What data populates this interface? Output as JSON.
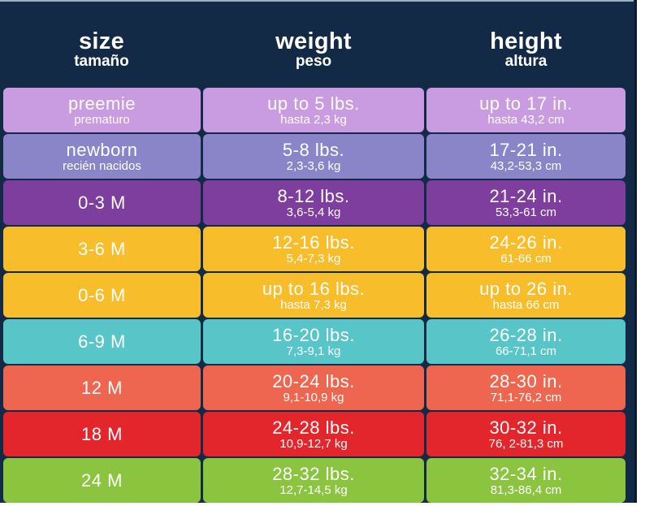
{
  "header": {
    "size": {
      "en": "size",
      "es": "tamaño"
    },
    "weight": {
      "en": "weight",
      "es": "peso"
    },
    "height": {
      "en": "height",
      "es": "altura"
    }
  },
  "colors": {
    "background": "#122a45",
    "preemie": "#c99be0",
    "newborn": "#8a85c8",
    "0-3M": "#7e3e9e",
    "3-6M": "#f7bd2a",
    "0-6M": "#f7bd2a",
    "6-9M": "#58c5c8",
    "12M": "#ee6650",
    "18M": "#e2262c",
    "24M": "#8bc43f"
  },
  "rows": [
    {
      "size": "preemie",
      "size_es": "prematuro",
      "weight": "up to 5 lbs.",
      "weight_metric": "hasta 2,3 kg",
      "height": "up to 17 in.",
      "height_metric": "hasta 43,2 cm",
      "color": "#c99be0"
    },
    {
      "size": "newborn",
      "size_es": "recién nacidos",
      "weight": "5-8 lbs.",
      "weight_metric": "2,3-3,6 kg",
      "height": "17-21 in.",
      "height_metric": "43,2-53,3 cm",
      "color": "#8a85c8"
    },
    {
      "size": "0-3 M",
      "size_es": "",
      "weight": "8-12 lbs.",
      "weight_metric": "3,6-5,4 kg",
      "height": "21-24 in.",
      "height_metric": "53,3-61 cm",
      "color": "#7e3e9e"
    },
    {
      "size": "3-6 M",
      "size_es": "",
      "weight": "12-16 lbs.",
      "weight_metric": "5,4-7,3 kg",
      "height": "24-26 in.",
      "height_metric": "61-66 cm",
      "color": "#f7bd2a"
    },
    {
      "size": "0-6 M",
      "size_es": "",
      "weight": "up to 16 lbs.",
      "weight_metric": "hasta 7,3 kg",
      "height": "up to 26 in.",
      "height_metric": "hasta 66 cm",
      "color": "#f7bd2a"
    },
    {
      "size": "6-9 M",
      "size_es": "",
      "weight": "16-20 lbs.",
      "weight_metric": "7,3-9,1 kg",
      "height": "26-28 in.",
      "height_metric": "66-71,1 cm",
      "color": "#58c5c8"
    },
    {
      "size": "12 M",
      "size_es": "",
      "weight": "20-24 lbs.",
      "weight_metric": "9,1-10,9 kg",
      "height": "28-30 in.",
      "height_metric": "71,1-76,2 cm",
      "color": "#ee6650"
    },
    {
      "size": "18 M",
      "size_es": "",
      "weight": "24-28 lbs.",
      "weight_metric": "10,9-12,7 kg",
      "height": "30-32 in.",
      "height_metric": "76, 2-81,3 cm",
      "color": "#e2262c"
    },
    {
      "size": "24 M",
      "size_es": "",
      "weight": "28-32 lbs.",
      "weight_metric": "12,7-14,5 kg",
      "height": "32-34 in.",
      "height_metric": "81,3-86,4 cm",
      "color": "#8bc43f"
    }
  ]
}
